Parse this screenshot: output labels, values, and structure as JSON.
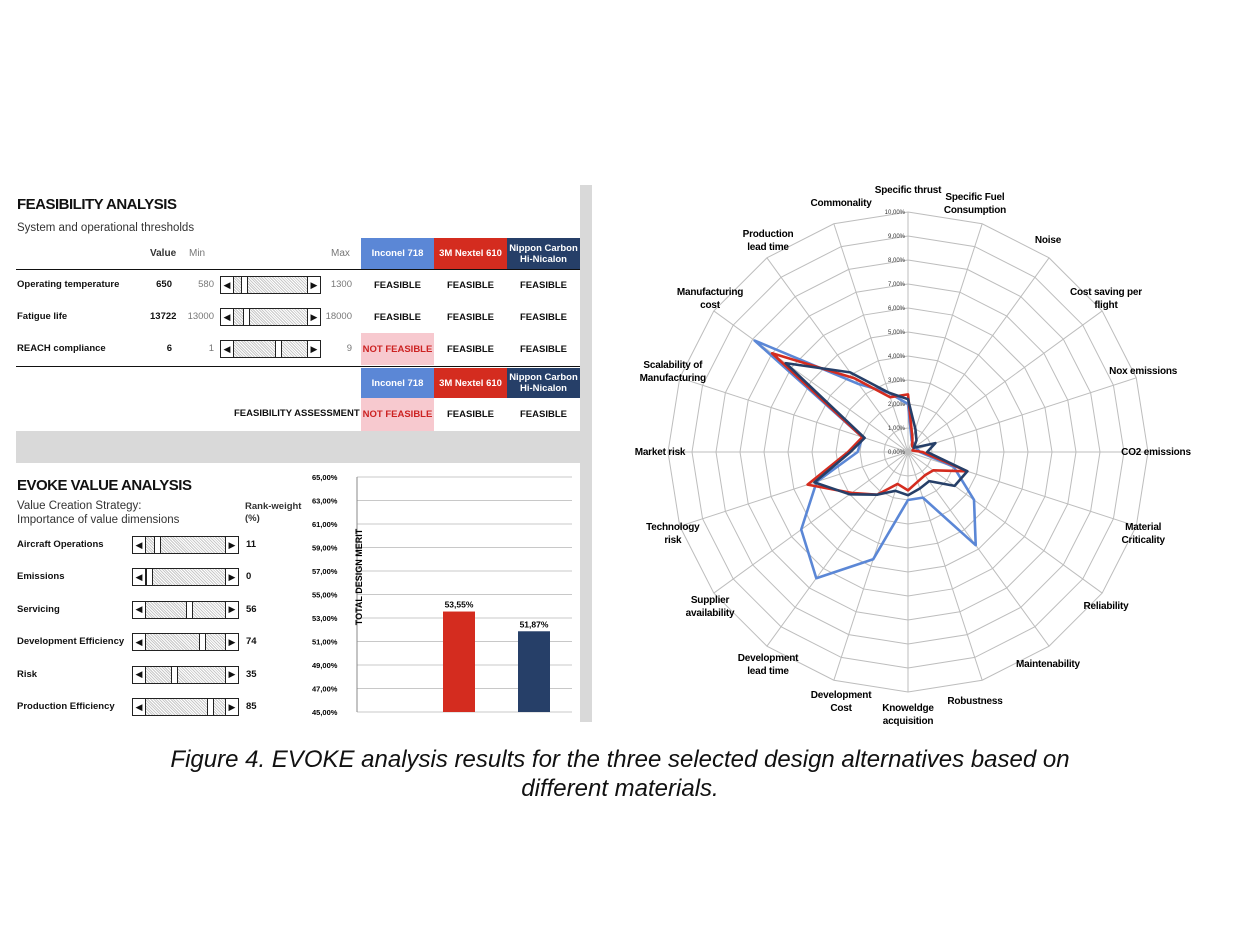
{
  "feasibility": {
    "title": "FEASIBILITY ANALYSIS",
    "subtitle": "System and operational thresholds",
    "col_value": "Value",
    "col_min": "Min",
    "col_max": "Max",
    "materials": [
      {
        "name": "Inconel 718",
        "color": "#5b87d6"
      },
      {
        "name": "3M Nextel 610",
        "color": "#d42c1f"
      },
      {
        "name": "Nippon Carbon\nHi-Nicalon",
        "color": "#263f68"
      }
    ],
    "rows": [
      {
        "label": "Operating temperature",
        "value": "650",
        "min": "580",
        "max": "1300",
        "slider": 0.1,
        "status": [
          "FEASIBLE",
          "FEASIBLE",
          "FEASIBLE"
        ]
      },
      {
        "label": "Fatigue life",
        "value": "13722",
        "min": "13000",
        "max": "18000",
        "slider": 0.14,
        "status": [
          "FEASIBLE",
          "FEASIBLE",
          "FEASIBLE"
        ]
      },
      {
        "label": "REACH compliance",
        "value": "6",
        "min": "1",
        "max": "9",
        "slider": 0.62,
        "status": [
          "NOT FEASIBLE",
          "FEASIBLE",
          "FEASIBLE"
        ]
      }
    ],
    "assessment_label": "FEASIBILITY ASSESSMENT",
    "assessment": [
      "NOT FEASIBLE",
      "FEASIBLE",
      "FEASIBLE"
    ]
  },
  "evoke": {
    "title": "EVOKE VALUE ANALYSIS",
    "subtitle1": "Value Creation Strategy:",
    "subtitle2": "Importance of value dimensions",
    "rank_head": "Rank-weight\n(%)",
    "dimensions": [
      {
        "label": "Aircraft Operations",
        "weight": "11",
        "slider": 0.11
      },
      {
        "label": "Emissions",
        "weight": "0",
        "slider": 0.0
      },
      {
        "label": "Servicing",
        "weight": "56",
        "slider": 0.56
      },
      {
        "label": "Development Efficiency",
        "weight": "74",
        "slider": 0.74
      },
      {
        "label": "Risk",
        "weight": "35",
        "slider": 0.35
      },
      {
        "label": "Production Efficiency",
        "weight": "85",
        "slider": 0.85
      }
    ]
  },
  "chart_data": [
    {
      "type": "bar",
      "ylabel": "TOTAL DESIGN MERIT",
      "ylim": [
        45,
        65
      ],
      "yticks": [
        "45,00%",
        "47,00%",
        "49,00%",
        "51,00%",
        "53,00%",
        "55,00%",
        "57,00%",
        "59,00%",
        "61,00%",
        "63,00%",
        "65,00%"
      ],
      "categories": [
        "3M Nextel 610",
        "Nippon Carbon Hi-Nicalon"
      ],
      "values": [
        53.55,
        51.87
      ],
      "labels": [
        "53,55%",
        "51,87%"
      ],
      "colors": [
        "#d42c1f",
        "#263f68"
      ],
      "grid": true
    },
    {
      "type": "radar",
      "rmax": 10,
      "rticks": [
        "0,00%",
        "1,00%",
        "2,00%",
        "3,00%",
        "4,00%",
        "5,00%",
        "6,00%",
        "7,00%",
        "8,00%",
        "9,00%",
        "10,00%"
      ],
      "axes": [
        "Specific thrust",
        "Specific Fuel\nConsumption",
        "Noise",
        "Cost saving per\nflight",
        "Nox emissions",
        "CO2 emissions",
        "Material\nCriticality",
        "Reliability",
        "Maintenability",
        "Robustness",
        "Knoweldge\nacquisition",
        "Development\nCost",
        "Development\nlead time",
        "Supplier\navailability",
        "Technology\nrisk",
        "Market risk",
        "Scalability of\nManufacturing",
        "Manufacturing\ncost",
        "Production\nlead time",
        "Commonality"
      ],
      "series": [
        {
          "color": "#5b87d6",
          "values": [
            2.0,
            0.5,
            0.4,
            0.4,
            0.4,
            0.5,
            2.0,
            3.4,
            4.8,
            2.0,
            2.0,
            4.7,
            6.5,
            5.5,
            4.0,
            2.1,
            2.0,
            7.9,
            3.5,
            2.6
          ]
        },
        {
          "color": "#d42c1f",
          "values": [
            2.4,
            0.6,
            0.3,
            0.3,
            0.2,
            0.6,
            2.6,
            1.3,
            1.2,
            1.3,
            1.6,
            1.4,
            2.2,
            2.9,
            4.4,
            2.5,
            2.0,
            7.0,
            3.8,
            2.4
          ]
        },
        {
          "color": "#263f68",
          "values": [
            2.2,
            1.0,
            0.6,
            0.3,
            1.2,
            0.8,
            2.6,
            2.4,
            1.5,
            1.6,
            1.8,
            1.7,
            2.2,
            3.0,
            4.1,
            2.4,
            1.9,
            6.3,
            4.1,
            2.6
          ]
        }
      ]
    }
  ],
  "caption": {
    "line1": "Figure 4. EVOKE analysis results for the three selected design alternatives based on",
    "line2": "different materials."
  }
}
